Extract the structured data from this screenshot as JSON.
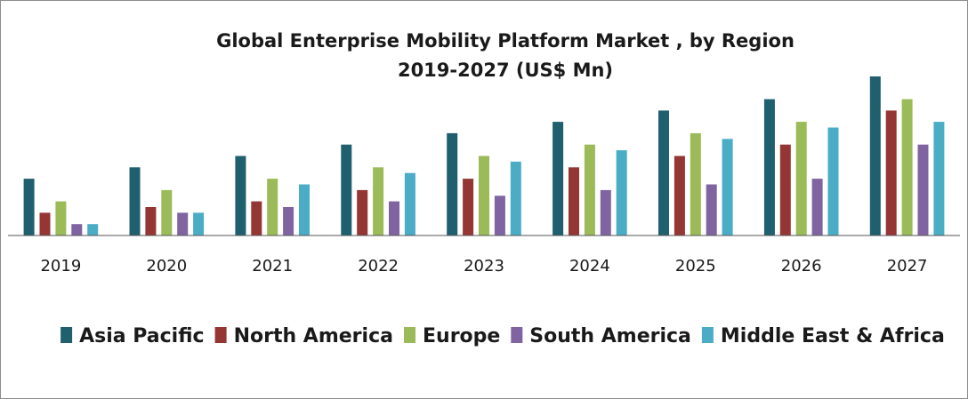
{
  "chart_data": {
    "type": "bar",
    "title": "Global Enterprise Mobility Platform Market , by Region",
    "subtitle": "2019-2027 (US$ Mn)",
    "xlabel": "",
    "ylabel": "",
    "categories": [
      "2019",
      "2020",
      "2021",
      "2022",
      "2023",
      "2024",
      "2025",
      "2026",
      "2027"
    ],
    "series": [
      {
        "name": "Asia Pacific",
        "color": "#1f5f6e",
        "values": [
          5,
          6,
          7,
          8,
          9,
          10,
          11,
          12,
          14
        ]
      },
      {
        "name": "North America",
        "color": "#943634",
        "values": [
          2,
          2.5,
          3,
          4,
          5,
          6,
          7,
          8,
          11
        ]
      },
      {
        "name": "Europe",
        "color": "#9bbb59",
        "values": [
          3,
          4,
          5,
          6,
          7,
          8,
          9,
          10,
          12
        ]
      },
      {
        "name": "South America",
        "color": "#8064a2",
        "values": [
          1,
          2,
          2.5,
          3,
          3.5,
          4,
          4.5,
          5,
          8
        ]
      },
      {
        "name": "Middle East & Africa",
        "color": "#4bacc6",
        "values": [
          1,
          2,
          4.5,
          5.5,
          6.5,
          7.5,
          8.5,
          9.5,
          10
        ]
      }
    ],
    "ylim": [
      0,
      14
    ],
    "grid": false,
    "legend_position": "bottom"
  }
}
